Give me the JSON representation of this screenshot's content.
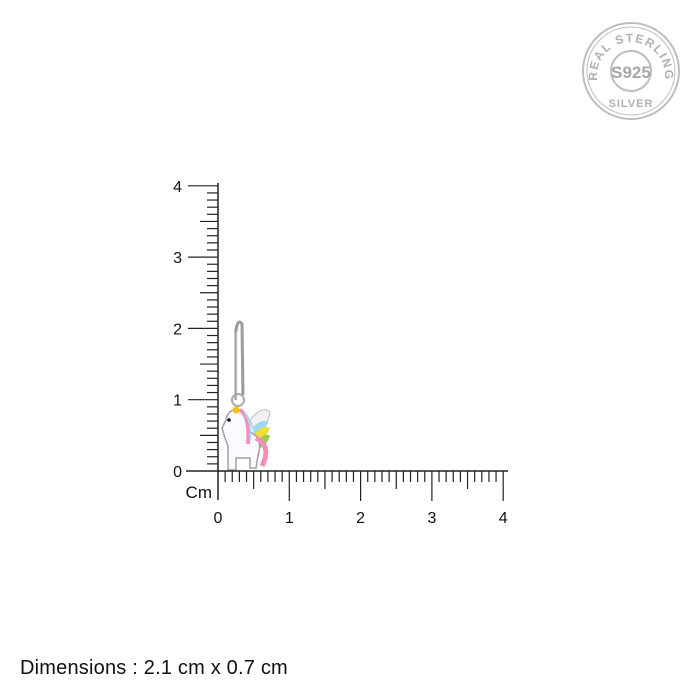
{
  "seal": {
    "top_text": "REAL STERLING",
    "center_text": "S925",
    "bottom_text": "SILVER",
    "color": "#b5b5b5"
  },
  "ruler": {
    "unit_label": "Cm",
    "x_ticks": [
      "0",
      "1",
      "2",
      "3",
      "4"
    ],
    "y_ticks": [
      "0",
      "1",
      "2",
      "3",
      "4"
    ],
    "range_cm": [
      0,
      4
    ],
    "minor_step_cm": 0.1
  },
  "product": {
    "name": "unicorn hoop earring",
    "height_cm": 2.1,
    "width_cm": 0.7
  },
  "dimensions_text": "Dimensions : 2.1 cm x 0.7 cm"
}
